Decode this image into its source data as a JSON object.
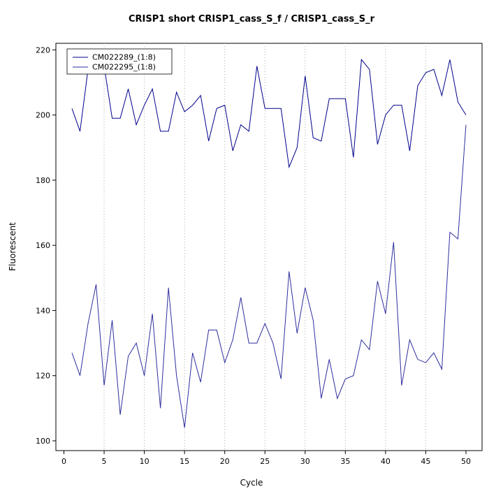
{
  "window": {
    "background": "#ffffff"
  },
  "chart_data": {
    "type": "line",
    "title": "CRISP1 short CRISP1_cass_S_f / CRISP1_cass_S_r",
    "xlabel": "Cycle",
    "ylabel": "Fluorescent",
    "xlim": [
      -1,
      52
    ],
    "ylim": [
      97,
      222
    ],
    "xticks": [
      0,
      5,
      10,
      15,
      20,
      25,
      30,
      35,
      40,
      45,
      50
    ],
    "yticks": [
      100,
      120,
      140,
      160,
      180,
      200,
      220
    ],
    "grid": {
      "vertical_at": [
        5,
        10,
        15,
        20,
        25,
        30,
        35,
        40,
        45
      ],
      "style": "dotted",
      "color": "#aaaaaa"
    },
    "legend": {
      "position": "top-left",
      "entries": [
        "CM022289_(1:8)",
        "CM022295_(1:8)"
      ]
    },
    "x": [
      1,
      2,
      3,
      4,
      5,
      6,
      7,
      8,
      9,
      10,
      11,
      12,
      13,
      14,
      15,
      16,
      17,
      18,
      19,
      20,
      21,
      22,
      23,
      24,
      25,
      26,
      27,
      28,
      29,
      30,
      31,
      32,
      33,
      34,
      35,
      36,
      37,
      38,
      39,
      40,
      41,
      42,
      43,
      44,
      45,
      46,
      47,
      48,
      49,
      50
    ],
    "series": [
      {
        "name": "CM022289_(1:8)",
        "color": "#00008b",
        "values": [
          202,
          195,
          214,
          213,
          215,
          199,
          199,
          208,
          197,
          203,
          208,
          195,
          195,
          207,
          201,
          203,
          206,
          192,
          202,
          203,
          189,
          197,
          195,
          215,
          202,
          202,
          202,
          184,
          190,
          212,
          193,
          192,
          205,
          205,
          205,
          187,
          217,
          214,
          191,
          200,
          203,
          203,
          189,
          209,
          213,
          214,
          206,
          217,
          204,
          200
        ]
      },
      {
        "name": "CM022295_(1:8)",
        "color": "#2e2e9e",
        "values": [
          127,
          120,
          136,
          148,
          117,
          137,
          108,
          126,
          130,
          120,
          139,
          110,
          147,
          120,
          104,
          127,
          118,
          134,
          134,
          124,
          131,
          144,
          130,
          130,
          136,
          130,
          119,
          152,
          133,
          147,
          137,
          113,
          125,
          113,
          119,
          120,
          131,
          128,
          149,
          139,
          161,
          117,
          131,
          125,
          124,
          127,
          122,
          164,
          162,
          197
        ]
      }
    ]
  }
}
